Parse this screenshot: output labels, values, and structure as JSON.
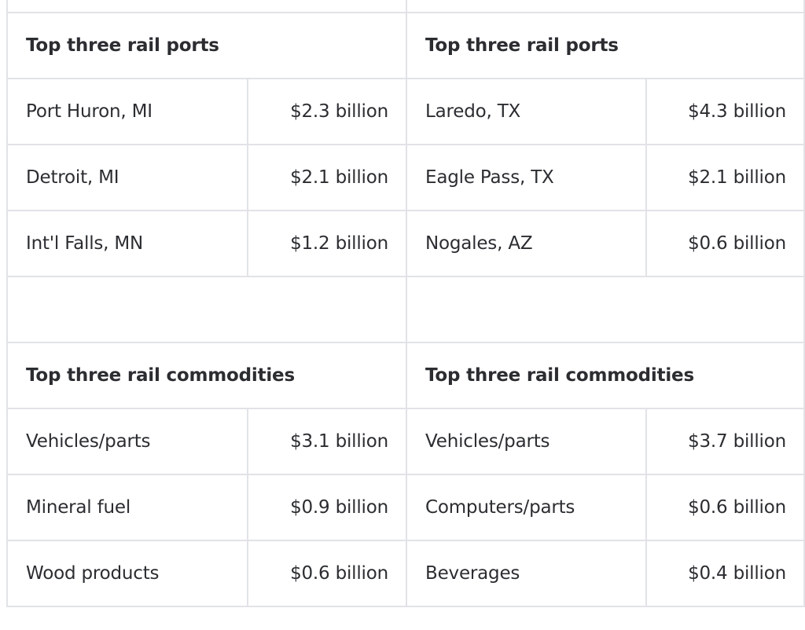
{
  "left": {
    "ports_heading": "Top three rail ports",
    "ports": [
      {
        "name": "Port Huron, MI",
        "value": "$2.3 billion"
      },
      {
        "name": "Detroit, MI",
        "value": "$2.1 billion"
      },
      {
        "name": "Int'l Falls, MN",
        "value": "$1.2 billion"
      }
    ],
    "commodities_heading": "Top three rail commodities",
    "commodities": [
      {
        "name": "Vehicles/parts",
        "value": "$3.1 billion"
      },
      {
        "name": "Mineral fuel",
        "value": "$0.9 billion"
      },
      {
        "name": "Wood products",
        "value": "$0.6 billion"
      }
    ]
  },
  "right": {
    "ports_heading": "Top three rail ports",
    "ports": [
      {
        "name": "Laredo, TX",
        "value": "$4.3 billion"
      },
      {
        "name": "Eagle Pass, TX",
        "value": "$2.1 billion"
      },
      {
        "name": "Nogales, AZ",
        "value": "$0.6 billion"
      }
    ],
    "commodities_heading": "Top three rail commodities",
    "commodities": [
      {
        "name": "Vehicles/parts",
        "value": "$3.7 billion"
      },
      {
        "name": "Computers/parts",
        "value": "$0.6 billion"
      },
      {
        "name": "Beverages",
        "value": "$0.4 billion"
      }
    ]
  }
}
